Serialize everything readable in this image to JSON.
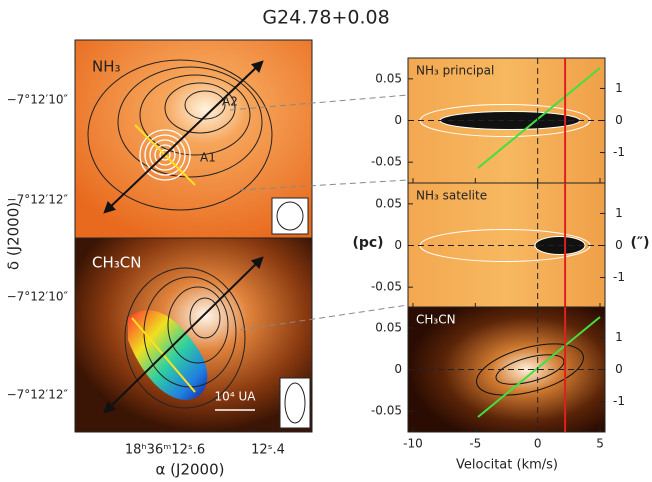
{
  "title": "G24.78+0.08",
  "maps": {
    "ylabel": "δ (J2000)",
    "xlabel": "α (J2000)",
    "yticks": [
      "−7°12′10″",
      "−7°12′12″"
    ],
    "xticks": [
      "18ʰ36ᵐ12ˢ.6",
      "12ˢ.4"
    ],
    "panels": [
      {
        "label": "NH₃",
        "annotations": [
          "A2",
          "A1"
        ]
      },
      {
        "label": "CH₃CN",
        "scale": "10⁴ UA"
      }
    ]
  },
  "pv": {
    "xlabel": "Velocitat (km/s)",
    "ylabel": "(pc)",
    "y2label": "(″)"
  },
  "chart_data": [
    {
      "type": "pv",
      "label": "NH₃ principal",
      "xlim": [
        -10.4,
        5.4
      ],
      "xticks": [
        -10,
        -5,
        0,
        5
      ],
      "ylim": [
        -0.075,
        0.075
      ],
      "yticks": [
        0.05,
        0,
        -0.05
      ],
      "y2lim": [
        -1.95,
        1.95
      ],
      "y2ticks": [
        1,
        0,
        -1
      ],
      "vline": 2.2
    },
    {
      "type": "pv",
      "label": "NH₃ satelite",
      "xlim": [
        -10.4,
        5.4
      ],
      "xticks": [
        -10,
        -5,
        0,
        5
      ],
      "ylim": [
        -0.075,
        0.075
      ],
      "yticks": [
        0.05,
        0,
        -0.05
      ],
      "y2lim": [
        -1.95,
        1.95
      ],
      "y2ticks": [
        1,
        0,
        -1
      ],
      "vline": 2.2
    },
    {
      "type": "pv",
      "label": "CH₃CN",
      "xlim": [
        -10.4,
        5.4
      ],
      "xticks": [
        -10,
        -5,
        0,
        5
      ],
      "ylim": [
        -0.075,
        0.075
      ],
      "yticks": [
        0.05,
        0,
        -0.05
      ],
      "y2lim": [
        -1.95,
        1.95
      ],
      "y2ticks": [
        1,
        0,
        -1
      ],
      "vline": 2.2
    }
  ]
}
